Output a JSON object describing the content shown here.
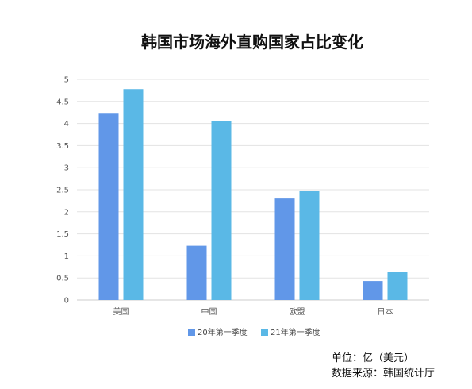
{
  "chart_data": {
    "type": "bar",
    "title": "韩国市场海外直购国家占比变化",
    "categories": [
      "美国",
      "中国",
      "欧盟",
      "日本"
    ],
    "series": [
      {
        "name": "20年第一季度",
        "values": [
          4.24,
          1.23,
          2.3,
          0.43
        ],
        "color": "#6197e8"
      },
      {
        "name": "21年第一季度",
        "values": [
          4.78,
          4.06,
          2.47,
          0.64
        ],
        "color": "#5ab8e6"
      }
    ],
    "ylim": [
      0,
      5
    ],
    "yticks": [
      "0",
      "0.5",
      "1",
      "1.5",
      "2",
      "2.5",
      "3",
      "3.5",
      "4",
      "4.5",
      "5"
    ],
    "grid": true,
    "legend": "bottom-center"
  },
  "notes": {
    "unit": "单位：亿（美元）",
    "source": "数据来源：韩国统计厅"
  },
  "colors": {
    "grid": "#e3e3e3",
    "axis": "#cccccc"
  }
}
